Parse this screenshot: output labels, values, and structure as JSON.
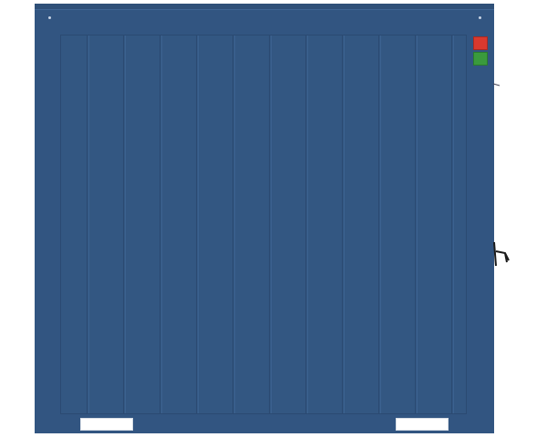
{
  "scene": {
    "subject": "shipping-container-side",
    "colors": {
      "container_body": "#325581",
      "panel_ribs": "#2b4a72",
      "red_plate": "#d9392e",
      "green_plate": "#3a9a3d",
      "forklift_slots": "#ffffff",
      "handle": "#1a1a1a"
    },
    "icons": [
      "red-warning-plate-icon",
      "green-info-plate-icon",
      "door-handle-icon"
    ]
  }
}
